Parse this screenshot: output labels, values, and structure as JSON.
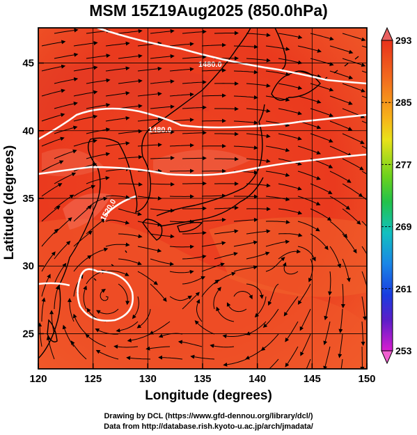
{
  "title": "MSM 15Z19Aug2025 (850.0hPa)",
  "xlabel": "Longitude (degrees)",
  "ylabel": "Latitude  (degrees)",
  "x_ticks": [
    "120",
    "125",
    "130",
    "135",
    "140",
    "145",
    "150"
  ],
  "y_ticks": [
    "25",
    "30",
    "35",
    "40",
    "45"
  ],
  "colorbar_ticks": [
    "293",
    "285",
    "277",
    "269",
    "261",
    "253"
  ],
  "contour_labels": [
    "1480.0",
    "1480.0",
    "1520.0"
  ],
  "credit_line1": "Drawing by DCL (https://www.gfd-dennou.org/library/dcl/)",
  "credit_line2": "Data from http://database.rish.kyoto-u.ac.jp/arch/jmadata/",
  "colors": {
    "field_warm": "#e8321c",
    "field_cool": "#f06c30",
    "contour": "#ffffff",
    "streamline": "#000000",
    "coast": "#000000"
  },
  "chart_data": {
    "type": "heatmap",
    "title": "MSM 15Z19Aug2025 (850.0hPa)",
    "xlabel": "Longitude (degrees)",
    "ylabel": "Latitude  (degrees)",
    "xlim": [
      120,
      150
    ],
    "ylim": [
      22.4,
      47.6
    ],
    "x_ticks": [
      120,
      125,
      130,
      135,
      140,
      145,
      150
    ],
    "y_ticks": [
      25,
      30,
      35,
      40,
      45
    ],
    "colorbar": {
      "min": 253,
      "max": 293,
      "ticks": [
        293,
        285,
        277,
        269,
        261,
        253
      ]
    },
    "field": "temperature (K)",
    "overlays": [
      "geopotential height contours",
      "wind streamlines",
      "coastlines"
    ],
    "contour_values": [
      1480.0,
      1520.0
    ],
    "grid": true
  }
}
